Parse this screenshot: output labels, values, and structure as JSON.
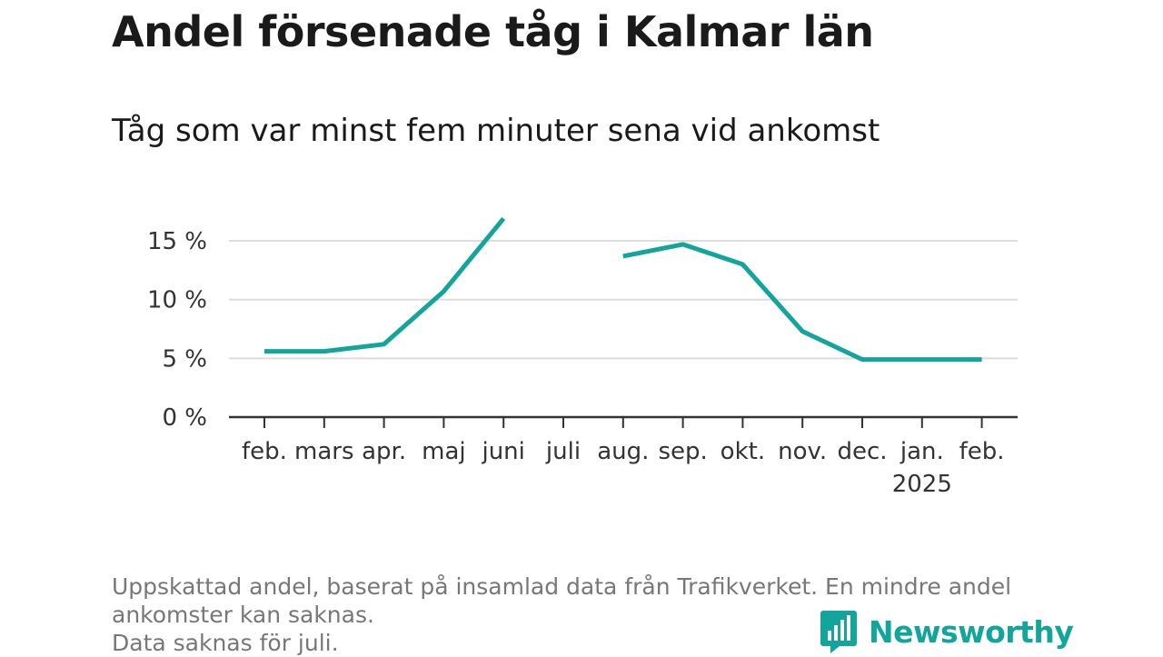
{
  "colors": {
    "line": "#12a59c",
    "grid": "#dddddd",
    "axis": "#333333"
  },
  "brand": {
    "name": "Newsworthy",
    "icon": "bar-chart-bubble-icon"
  },
  "footnote": [
    "Uppskattad andel, baserat på insamlad data från Trafikverket. En mindre andel",
    "ankomster kan saknas.",
    "Data saknas för juli."
  ],
  "chart_data": {
    "type": "line",
    "title": "Andel försenade tåg i Kalmar län",
    "subtitle": "Tåg som var minst fem minuter sena vid ankomst",
    "categories": [
      "feb.",
      "mars",
      "apr.",
      "maj",
      "juni",
      "juli",
      "aug.",
      "sep.",
      "okt.",
      "nov.",
      "dec.",
      "jan.",
      "feb."
    ],
    "category_sublabels": [
      "",
      "",
      "",
      "",
      "",
      "",
      "",
      "",
      "",
      "",
      "",
      "2025",
      ""
    ],
    "series": [
      {
        "values": [
          5.6,
          5.6,
          6.2,
          10.7,
          16.9,
          null,
          13.7,
          14.7,
          13.0,
          7.3,
          4.9,
          4.9,
          4.9
        ]
      }
    ],
    "ylim": [
      0,
      17
    ],
    "yticks": [
      0,
      5,
      10,
      15
    ],
    "ytick_labels": [
      "0 %",
      "5 %",
      "10 %",
      "15 %"
    ],
    "grid": true,
    "xlabel": "",
    "ylabel": ""
  }
}
